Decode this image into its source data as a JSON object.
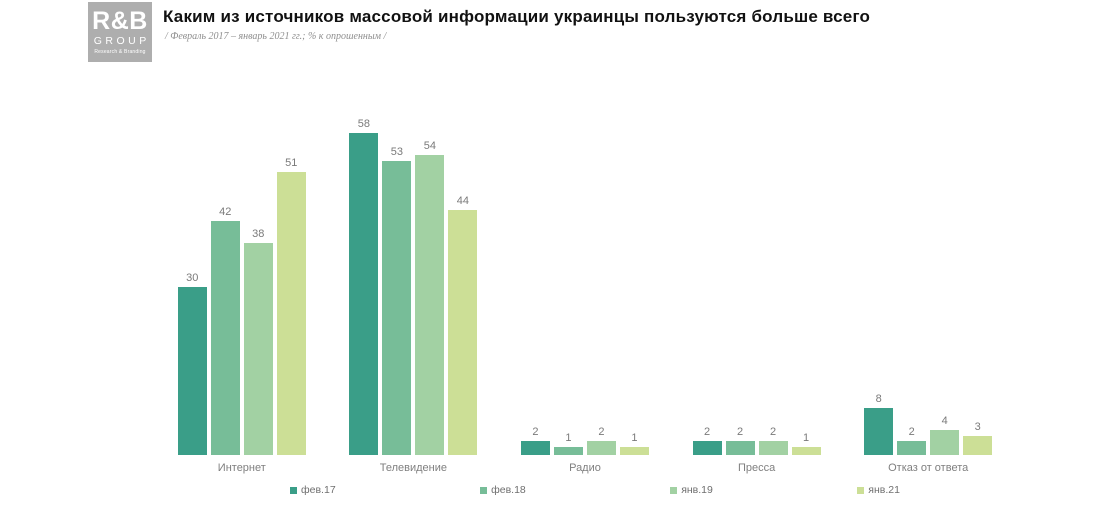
{
  "logo": {
    "line1": "R&B",
    "line2": "GROUP",
    "line3": "Research & Branding"
  },
  "header": {
    "title": "Каким из источников массовой информации украинцы пользуются больше всего",
    "subtitle": "/ Февраль 2017 – январь 2021 гг.; % к опрошенным /"
  },
  "colors": {
    "logo_background": "#aeaeae",
    "label_gray": "#7f7f7f",
    "series": [
      "#3a9e88",
      "#77bd98",
      "#a2d1a3",
      "#ccdf96"
    ]
  },
  "chart_data": {
    "type": "bar",
    "title": "Каким из источников массовой информации украинцы пользуются больше всего",
    "subtitle": "/ Февраль 2017 – январь 2021 гг.; % к опрошенным /",
    "categories": [
      "Интернет",
      "Телевидение",
      "Радио",
      "Пресса",
      "Отказ от ответа"
    ],
    "series": [
      {
        "name": "фев.17",
        "color": "#3a9e88",
        "values": [
          30,
          58,
          2,
          2,
          8
        ]
      },
      {
        "name": "фев.18",
        "color": "#77bd98",
        "values": [
          42,
          53,
          1,
          2,
          2
        ]
      },
      {
        "name": "янв.19",
        "color": "#a2d1a3",
        "values": [
          38,
          54,
          2,
          2,
          4
        ]
      },
      {
        "name": "янв.21",
        "color": "#ccdf96",
        "values": [
          51,
          44,
          1,
          1,
          3
        ]
      }
    ],
    "value_labels": true,
    "grid": false,
    "legend_position": "bottom",
    "ylim": [
      0,
      60
    ],
    "unit": "% к опрошенным"
  }
}
